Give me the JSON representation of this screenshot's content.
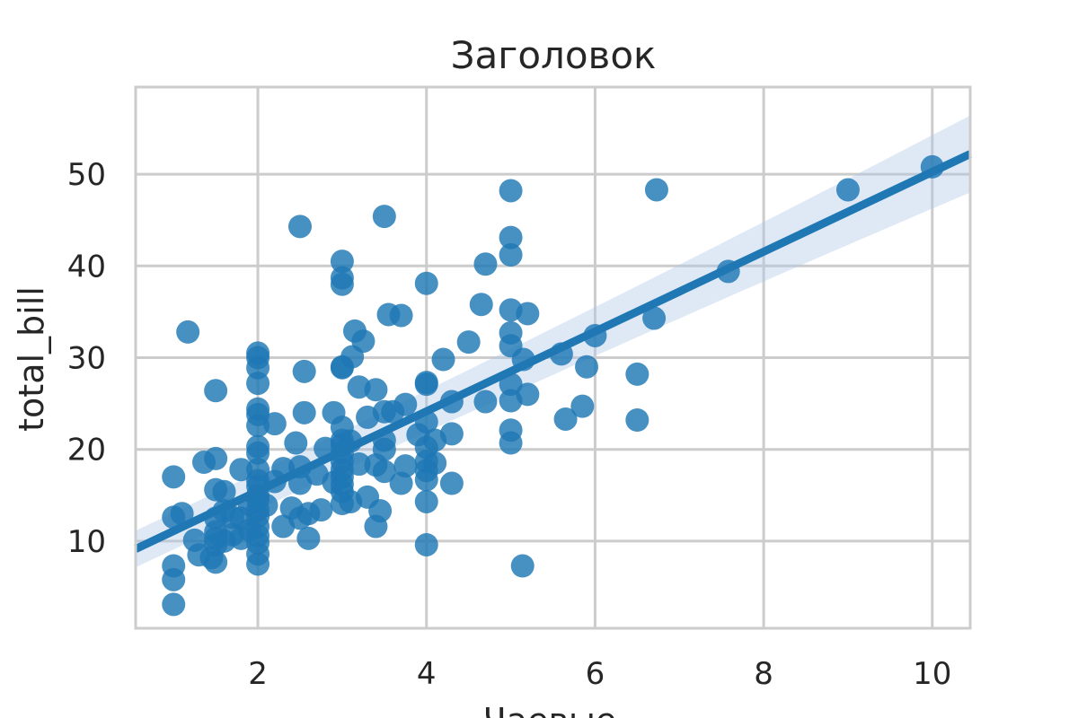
{
  "chart_data": {
    "type": "scatter",
    "title": "Заголовок",
    "xlabel": "Чаевые",
    "ylabel": "total_bill",
    "xlim": [
      0.55,
      10.45
    ],
    "ylim": [
      0.5,
      59.5
    ],
    "xticks": [
      2,
      4,
      6,
      8,
      10
    ],
    "yticks": [
      10,
      20,
      30,
      40,
      50
    ],
    "grid": true,
    "colors": {
      "points": "#1f77b4",
      "band": "#aec7e8"
    },
    "regression": {
      "intercept": 6.75,
      "slope": 4.35,
      "ci_left_half_width": 2.0,
      "ci_right_half_width": 4.2
    },
    "points": [
      [
        1.0,
        3.1
      ],
      [
        1.0,
        5.8
      ],
      [
        1.0,
        7.3
      ],
      [
        1.0,
        12.6
      ],
      [
        1.0,
        17.0
      ],
      [
        1.17,
        32.8
      ],
      [
        1.1,
        13.0
      ],
      [
        1.25,
        10.1
      ],
      [
        1.3,
        8.5
      ],
      [
        1.36,
        18.6
      ],
      [
        1.45,
        8.2
      ],
      [
        1.5,
        7.7
      ],
      [
        1.5,
        9.6
      ],
      [
        1.5,
        10.3
      ],
      [
        1.5,
        11.0
      ],
      [
        1.5,
        12.5
      ],
      [
        1.5,
        15.6
      ],
      [
        1.5,
        19.0
      ],
      [
        1.5,
        26.4
      ],
      [
        1.6,
        10.0
      ],
      [
        1.6,
        13.3
      ],
      [
        1.6,
        15.4
      ],
      [
        1.7,
        10.7
      ],
      [
        1.7,
        12.6
      ],
      [
        1.8,
        10.3
      ],
      [
        1.8,
        12.5
      ],
      [
        1.8,
        17.8
      ],
      [
        1.9,
        11.2
      ],
      [
        1.9,
        14.0
      ],
      [
        2.0,
        7.5
      ],
      [
        2.0,
        8.6
      ],
      [
        2.0,
        9.8
      ],
      [
        2.0,
        10.6
      ],
      [
        2.0,
        11.6
      ],
      [
        2.0,
        12.7
      ],
      [
        2.0,
        13.4
      ],
      [
        2.0,
        14.5
      ],
      [
        2.0,
        15.0
      ],
      [
        2.0,
        16.0
      ],
      [
        2.0,
        16.6
      ],
      [
        2.0,
        17.8
      ],
      [
        2.0,
        19.6
      ],
      [
        2.0,
        20.3
      ],
      [
        2.0,
        22.6
      ],
      [
        2.0,
        23.8
      ],
      [
        2.0,
        24.4
      ],
      [
        2.0,
        27.2
      ],
      [
        2.0,
        28.9
      ],
      [
        2.0,
        30.0
      ],
      [
        2.0,
        30.5
      ],
      [
        2.1,
        13.9
      ],
      [
        2.2,
        16.5
      ],
      [
        2.2,
        22.8
      ],
      [
        2.3,
        11.6
      ],
      [
        2.3,
        17.9
      ],
      [
        2.4,
        13.6
      ],
      [
        2.45,
        20.7
      ],
      [
        2.5,
        12.5
      ],
      [
        2.5,
        16.3
      ],
      [
        2.5,
        18.1
      ],
      [
        2.5,
        44.3
      ],
      [
        2.55,
        28.5
      ],
      [
        2.55,
        24.0
      ],
      [
        2.6,
        10.3
      ],
      [
        2.6,
        13.0
      ],
      [
        2.7,
        17.3
      ],
      [
        2.75,
        13.4
      ],
      [
        2.8,
        20.1
      ],
      [
        2.9,
        16.4
      ],
      [
        2.9,
        24.0
      ],
      [
        3.0,
        14.1
      ],
      [
        3.0,
        15.4
      ],
      [
        3.0,
        16.2
      ],
      [
        3.0,
        17.0
      ],
      [
        3.0,
        17.8
      ],
      [
        3.0,
        18.7
      ],
      [
        3.0,
        19.6
      ],
      [
        3.0,
        20.5
      ],
      [
        3.0,
        21.0
      ],
      [
        3.0,
        22.4
      ],
      [
        3.0,
        28.9
      ],
      [
        3.0,
        29.0
      ],
      [
        3.0,
        38.0
      ],
      [
        3.0,
        38.7
      ],
      [
        3.0,
        40.5
      ],
      [
        3.1,
        14.3
      ],
      [
        3.1,
        20.9
      ],
      [
        3.12,
        30.1
      ],
      [
        3.15,
        32.9
      ],
      [
        3.2,
        18.4
      ],
      [
        3.2,
        26.8
      ],
      [
        3.25,
        31.8
      ],
      [
        3.3,
        14.8
      ],
      [
        3.3,
        23.5
      ],
      [
        3.4,
        11.6
      ],
      [
        3.4,
        18.3
      ],
      [
        3.4,
        26.5
      ],
      [
        3.45,
        13.3
      ],
      [
        3.5,
        17.6
      ],
      [
        3.5,
        20.0
      ],
      [
        3.5,
        21.0
      ],
      [
        3.5,
        24.1
      ],
      [
        3.5,
        45.4
      ],
      [
        3.55,
        34.7
      ],
      [
        3.6,
        24.1
      ],
      [
        3.7,
        16.3
      ],
      [
        3.7,
        34.6
      ],
      [
        3.75,
        18.2
      ],
      [
        3.75,
        24.9
      ],
      [
        3.9,
        21.6
      ],
      [
        4.0,
        9.6
      ],
      [
        4.0,
        14.3
      ],
      [
        4.0,
        16.7
      ],
      [
        4.0,
        17.7
      ],
      [
        4.0,
        18.7
      ],
      [
        4.0,
        20.2
      ],
      [
        4.0,
        23.0
      ],
      [
        4.0,
        27.1
      ],
      [
        4.0,
        27.3
      ],
      [
        4.0,
        38.1
      ],
      [
        4.1,
        18.5
      ],
      [
        4.1,
        21.0
      ],
      [
        4.2,
        29.8
      ],
      [
        4.3,
        16.3
      ],
      [
        4.3,
        21.7
      ],
      [
        4.3,
        25.2
      ],
      [
        4.5,
        31.7
      ],
      [
        4.7,
        25.2
      ],
      [
        4.7,
        40.2
      ],
      [
        4.65,
        35.8
      ],
      [
        5.0,
        20.7
      ],
      [
        5.0,
        22.1
      ],
      [
        5.0,
        25.3
      ],
      [
        5.0,
        27.1
      ],
      [
        5.0,
        31.3
      ],
      [
        5.0,
        32.7
      ],
      [
        5.0,
        35.2
      ],
      [
        5.0,
        41.2
      ],
      [
        5.0,
        43.1
      ],
      [
        5.0,
        48.2
      ],
      [
        5.14,
        7.3
      ],
      [
        5.15,
        29.8
      ],
      [
        5.2,
        26.0
      ],
      [
        5.2,
        34.8
      ],
      [
        5.6,
        30.4
      ],
      [
        5.65,
        23.3
      ],
      [
        5.85,
        24.7
      ],
      [
        5.9,
        29.0
      ],
      [
        6.0,
        32.4
      ],
      [
        6.5,
        23.2
      ],
      [
        6.5,
        28.2
      ],
      [
        6.7,
        34.3
      ],
      [
        6.73,
        48.3
      ],
      [
        7.58,
        39.4
      ],
      [
        9.0,
        48.3
      ],
      [
        10.0,
        50.8
      ]
    ]
  }
}
